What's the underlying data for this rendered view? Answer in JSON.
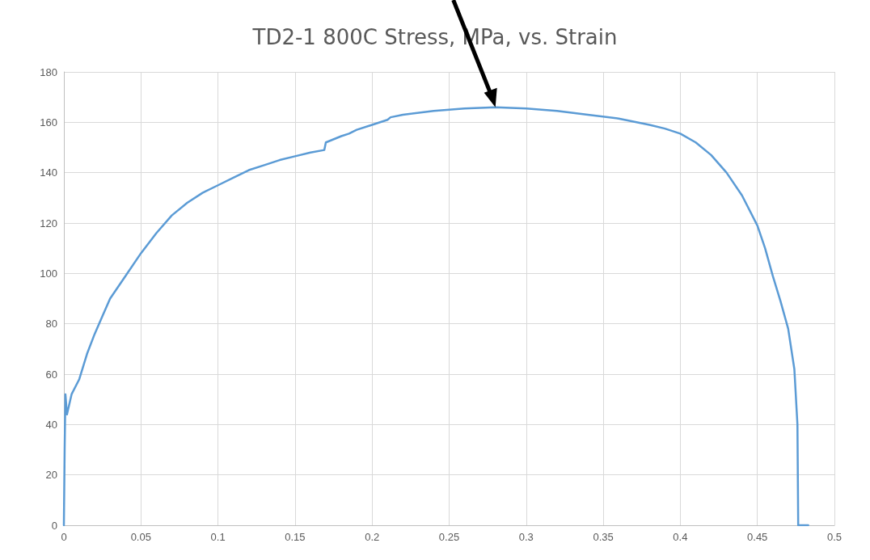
{
  "chart_data": {
    "type": "line",
    "title": "TD2-1 800C Stress, MPa, vs. Strain",
    "series": [
      {
        "color": "#5b9bd5",
        "x": [
          0,
          0.0005,
          0.001,
          0.002,
          0.005,
          0.01,
          0.015,
          0.02,
          0.025,
          0.03,
          0.04,
          0.05,
          0.06,
          0.07,
          0.08,
          0.09,
          0.1,
          0.11,
          0.12,
          0.13,
          0.14,
          0.15,
          0.16,
          0.169,
          0.17,
          0.18,
          0.185,
          0.19,
          0.2,
          0.21,
          0.212,
          0.22,
          0.24,
          0.26,
          0.28,
          0.3,
          0.32,
          0.34,
          0.36,
          0.38,
          0.39,
          0.4,
          0.41,
          0.42,
          0.43,
          0.44,
          0.45,
          0.455,
          0.46,
          0.465,
          0.47,
          0.474,
          0.476,
          0.4765,
          0.483
        ],
        "values": [
          0,
          30,
          52,
          44,
          52,
          58,
          68,
          76,
          83,
          90,
          99,
          108,
          116,
          123,
          128,
          132,
          135,
          138,
          141,
          143,
          145,
          146.5,
          148,
          149,
          152,
          154.5,
          155.5,
          157,
          159,
          161,
          162,
          163,
          164.5,
          165.5,
          166,
          165.5,
          164.5,
          163,
          161.5,
          159,
          157.5,
          155.5,
          152,
          147,
          140,
          131,
          119,
          110,
          99,
          89,
          78,
          62,
          40,
          0,
          0
        ]
      }
    ],
    "xlim": [
      0,
      0.5
    ],
    "xticks": [
      0,
      0.05,
      0.1,
      0.15,
      0.2,
      0.25,
      0.3,
      0.35,
      0.4,
      0.45,
      0.5
    ],
    "ylim": [
      0,
      180
    ],
    "yticks": [
      0,
      20,
      40,
      60,
      80,
      100,
      120,
      140,
      160,
      180
    ],
    "grid": true,
    "marker": "none",
    "line_style": "solid"
  }
}
